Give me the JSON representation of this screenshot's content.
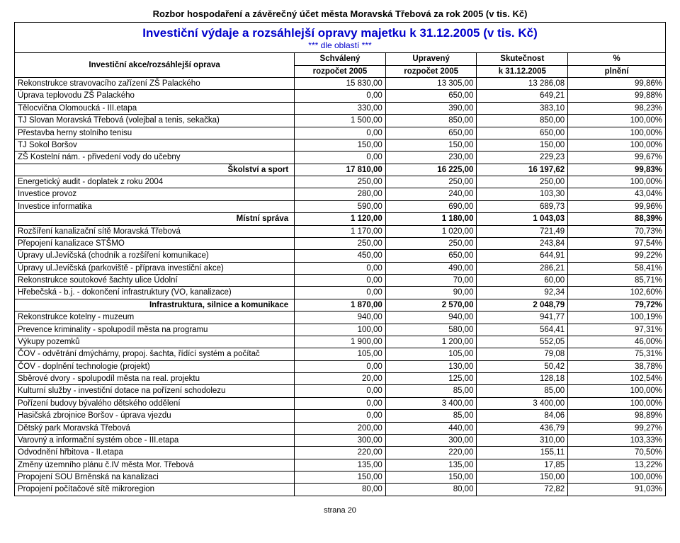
{
  "page_title": "Rozbor hospodaření a závěrečný účet města Moravská Třebová za rok 2005 (v tis. Kč)",
  "main_title": "Investiční výdaje a rozsáhlejší opravy majetku k 31.12.2005 (v tis. Kč)",
  "sub_title": "*** dle oblastí ***",
  "footer": "strana 20",
  "columns": {
    "c0a": "Investiční akce/rozsáhlejší oprava",
    "c1a": "Schválený",
    "c1b": "rozpočet 2005",
    "c2a": "Upravený",
    "c2b": "rozpočet 2005",
    "c3a": "Skutečnost",
    "c3b": "k 31.12.2005",
    "c4a": "%",
    "c4b": "plnění"
  },
  "rows": [
    {
      "label": "Rekonstrukce stravovacího zařízení ZŠ Palackého",
      "v": [
        "15 830,00",
        "13 305,00",
        "13 286,08",
        "99,86%"
      ],
      "section": false
    },
    {
      "label": "Úprava teplovodu ZŠ Palackého",
      "v": [
        "0,00",
        "650,00",
        "649,21",
        "99,88%"
      ],
      "section": false
    },
    {
      "label": "Tělocvična Olomoucká - III.etapa",
      "v": [
        "330,00",
        "390,00",
        "383,10",
        "98,23%"
      ],
      "section": false
    },
    {
      "label": "TJ Slovan Moravská Třebová (volejbal a tenis, sekačka)",
      "v": [
        "1 500,00",
        "850,00",
        "850,00",
        "100,00%"
      ],
      "section": false
    },
    {
      "label": "Přestavba herny stolního tenisu",
      "v": [
        "0,00",
        "650,00",
        "650,00",
        "100,00%"
      ],
      "section": false
    },
    {
      "label": "TJ Sokol Boršov",
      "v": [
        "150,00",
        "150,00",
        "150,00",
        "100,00%"
      ],
      "section": false
    },
    {
      "label": "ZŠ Kostelní nám. - přivedení vody do učebny",
      "v": [
        "0,00",
        "230,00",
        "229,23",
        "99,67%"
      ],
      "section": false
    },
    {
      "label": "Školství a sport",
      "v": [
        "17 810,00",
        "16 225,00",
        "16 197,62",
        "99,83%"
      ],
      "section": true
    },
    {
      "label": "Energetický audit - doplatek z roku 2004",
      "v": [
        "250,00",
        "250,00",
        "250,00",
        "100,00%"
      ],
      "section": false
    },
    {
      "label": "Investice provoz",
      "v": [
        "280,00",
        "240,00",
        "103,30",
        "43,04%"
      ],
      "section": false
    },
    {
      "label": "Investice informatika",
      "v": [
        "590,00",
        "690,00",
        "689,73",
        "99,96%"
      ],
      "section": false
    },
    {
      "label": "Místní správa",
      "v": [
        "1 120,00",
        "1 180,00",
        "1 043,03",
        "88,39%"
      ],
      "section": true
    },
    {
      "label": "Rozšíření kanalizační sítě Moravská Třebová",
      "v": [
        "1 170,00",
        "1 020,00",
        "721,49",
        "70,73%"
      ],
      "section": false
    },
    {
      "label": "Přepojení kanalizace STŠMO",
      "v": [
        "250,00",
        "250,00",
        "243,84",
        "97,54%"
      ],
      "section": false
    },
    {
      "label": "Úpravy ul.Jevíčská (chodník a rozšíření komunikace)",
      "v": [
        "450,00",
        "650,00",
        "644,91",
        "99,22%"
      ],
      "section": false
    },
    {
      "label": "Úpravy ul.Jevíčská (parkoviště - příprava investiční akce)",
      "v": [
        "0,00",
        "490,00",
        "286,21",
        "58,41%"
      ],
      "section": false
    },
    {
      "label": "Rekonstrukce soutokové šachty ulice Údolní",
      "v": [
        "0,00",
        "70,00",
        "60,00",
        "85,71%"
      ],
      "section": false
    },
    {
      "label": "Hřebečská - b.j. - dokončení infrastruktury (VO, kanalizace)",
      "v": [
        "0,00",
        "90,00",
        "92,34",
        "102,60%"
      ],
      "section": false
    },
    {
      "label": "Infrastruktura, silnice a komunikace",
      "v": [
        "1 870,00",
        "2 570,00",
        "2 048,79",
        "79,72%"
      ],
      "section": true
    },
    {
      "label": "Rekonstrukce kotelny - muzeum",
      "v": [
        "940,00",
        "940,00",
        "941,77",
        "100,19%"
      ],
      "section": false
    },
    {
      "label": "Prevence kriminality - spolupodíl města na programu",
      "v": [
        "100,00",
        "580,00",
        "564,41",
        "97,31%"
      ],
      "section": false
    },
    {
      "label": "Výkupy pozemků",
      "v": [
        "1 900,00",
        "1 200,00",
        "552,05",
        "46,00%"
      ],
      "section": false
    },
    {
      "label": "ČOV - odvětrání dmýchárny, propoj. šachta, řídící systém a počítač",
      "v": [
        "105,00",
        "105,00",
        "79,08",
        "75,31%"
      ],
      "section": false
    },
    {
      "label": "ČOV - doplnění technologie (projekt)",
      "v": [
        "0,00",
        "130,00",
        "50,42",
        "38,78%"
      ],
      "section": false
    },
    {
      "label": "Sběrové dvory - spolupodíl města na real. projektu",
      "v": [
        "20,00",
        "125,00",
        "128,18",
        "102,54%"
      ],
      "section": false
    },
    {
      "label": "Kulturní služby - investiční dotace na pořízení schodolezu",
      "v": [
        "0,00",
        "85,00",
        "85,00",
        "100,00%"
      ],
      "section": false
    },
    {
      "label": "Pořízení budovy bývalého dětského oddělení",
      "v": [
        "0,00",
        "3 400,00",
        "3 400,00",
        "100,00%"
      ],
      "section": false
    },
    {
      "label": "Hasičská zbrojnice Boršov - úprava vjezdu",
      "v": [
        "0,00",
        "85,00",
        "84,06",
        "98,89%"
      ],
      "section": false
    },
    {
      "label": "Dětský park Moravská Třebová",
      "v": [
        "200,00",
        "440,00",
        "436,79",
        "99,27%"
      ],
      "section": false
    },
    {
      "label": "Varovný a informační systém obce - III.etapa",
      "v": [
        "300,00",
        "300,00",
        "310,00",
        "103,33%"
      ],
      "section": false
    },
    {
      "label": "Odvodnění hřbitova - II.etapa",
      "v": [
        "220,00",
        "220,00",
        "155,11",
        "70,50%"
      ],
      "section": false
    },
    {
      "label": "Změny územního plánu č.IV města Mor. Třebová",
      "v": [
        "135,00",
        "135,00",
        "17,85",
        "13,22%"
      ],
      "section": false
    },
    {
      "label": "Propojení SOU Brněnská na kanalizaci",
      "v": [
        "150,00",
        "150,00",
        "150,00",
        "100,00%"
      ],
      "section": false
    },
    {
      "label": "Propojení počítačové sítě mikroregion",
      "v": [
        "80,00",
        "80,00",
        "72,82",
        "91,03%"
      ],
      "section": false
    }
  ]
}
